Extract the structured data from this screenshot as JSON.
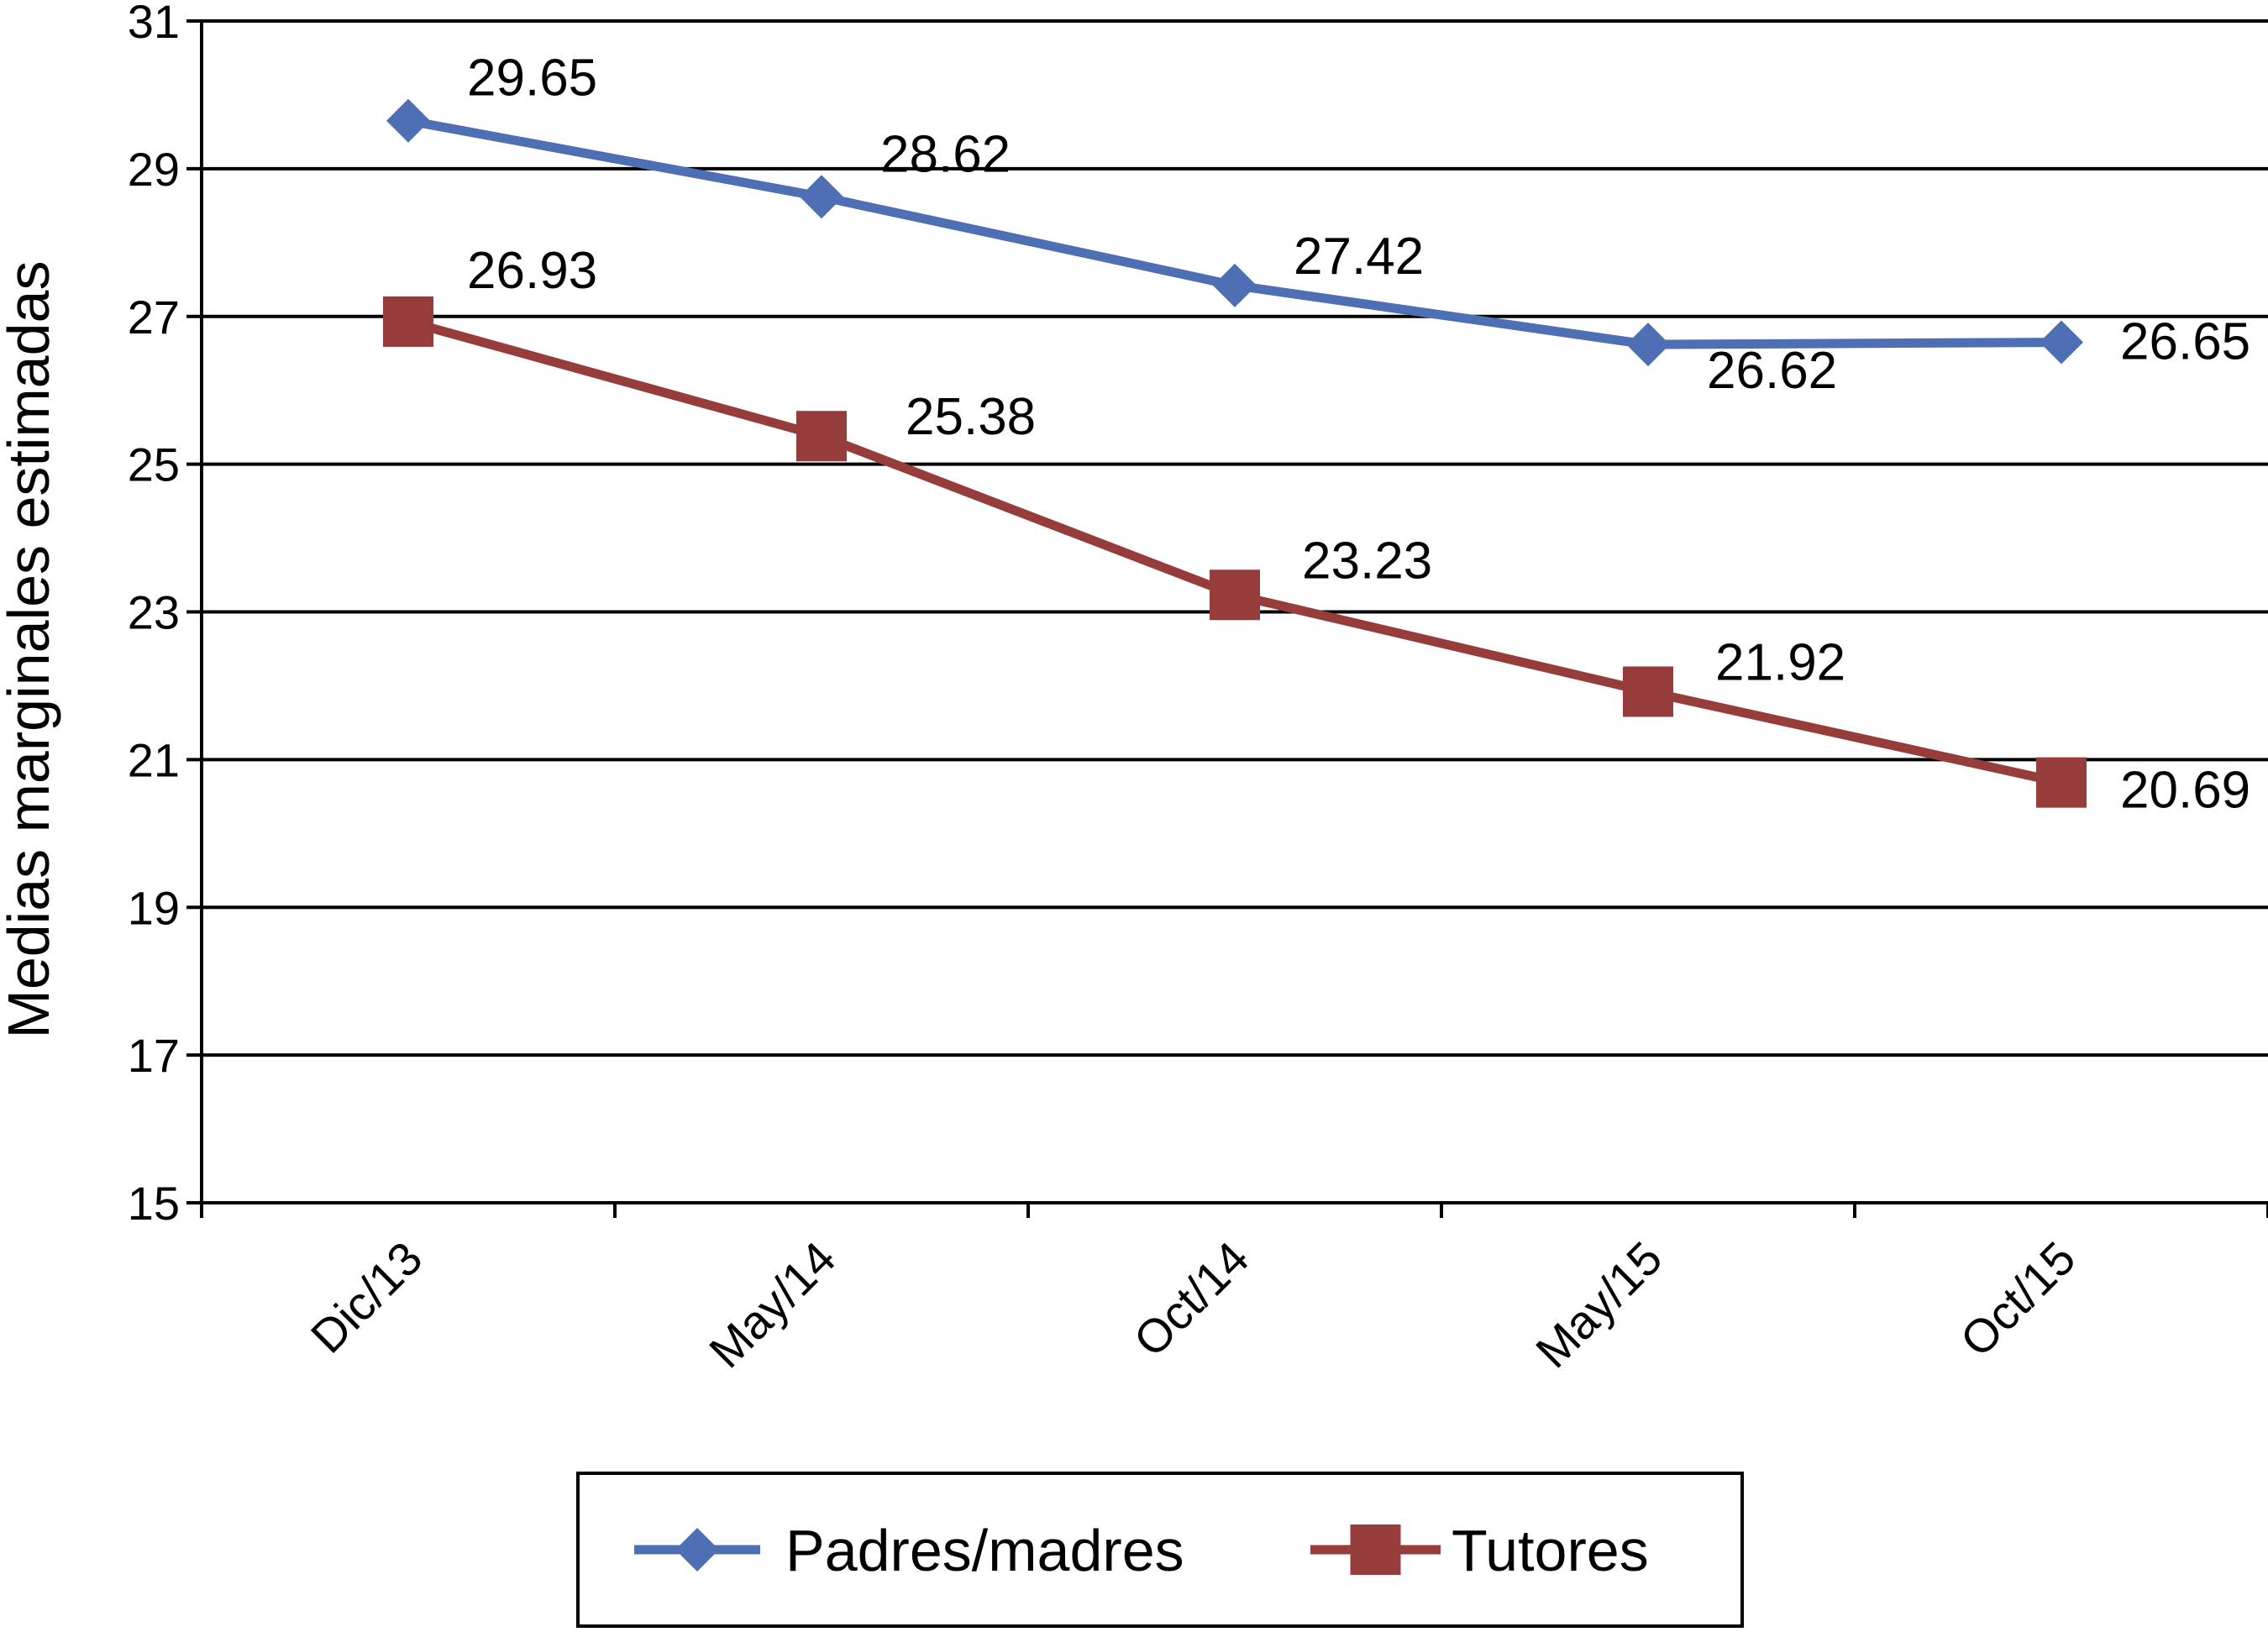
{
  "chart_data": {
    "type": "line",
    "title": "",
    "xlabel": "",
    "ylabel": "Medias marginales estimadas",
    "categories": [
      "Dic/13",
      "May/14",
      "Oct/14",
      "May/15",
      "Oct/15"
    ],
    "ylim": [
      15,
      31
    ],
    "yticks": [
      15,
      17,
      19,
      21,
      23,
      25,
      27,
      29,
      31
    ],
    "grid": true,
    "legend": "bottom",
    "series": [
      {
        "name": "Padres/madres",
        "values": [
          29.65,
          28.62,
          27.42,
          26.62,
          26.65
        ],
        "labels": [
          "29.65",
          "28.62",
          "27.42",
          "26.62",
          "26.65"
        ],
        "color": "#4f6fb5",
        "marker": "diamond"
      },
      {
        "name": "Tutores",
        "values": [
          26.93,
          25.38,
          23.23,
          21.92,
          20.69
        ],
        "labels": [
          "26.93",
          "25.38",
          "23.23",
          "21.92",
          "20.69"
        ],
        "color": "#963d3b",
        "marker": "square"
      }
    ]
  }
}
